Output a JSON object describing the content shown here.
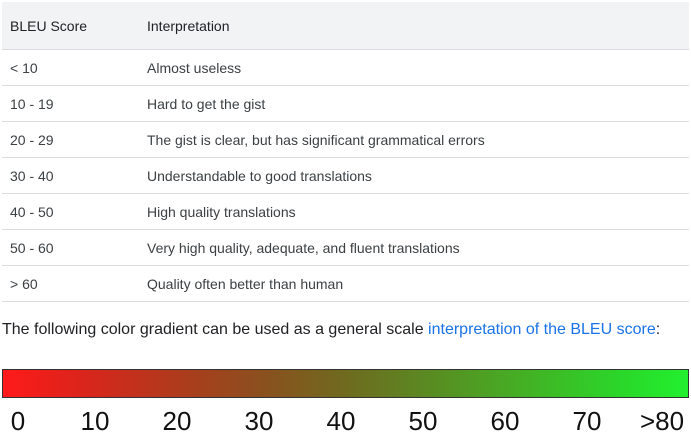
{
  "table": {
    "headers": [
      "BLEU Score",
      "Interpretation"
    ],
    "rows": [
      {
        "score": "< 10",
        "interpretation": "Almost useless"
      },
      {
        "score": "10 - 19",
        "interpretation": "Hard to get the gist"
      },
      {
        "score": "20 - 29",
        "interpretation": "The gist is clear, but has significant grammatical errors"
      },
      {
        "score": "30 - 40",
        "interpretation": "Understandable to good translations"
      },
      {
        "score": "40 - 50",
        "interpretation": "High quality translations"
      },
      {
        "score": "50 - 60",
        "interpretation": "Very high quality, adequate, and fluent translations"
      },
      {
        "score": "> 60",
        "interpretation": "Quality often better than human"
      }
    ]
  },
  "paragraph": {
    "text": "The following color gradient can be used as a general scale ",
    "link": "interpretation of the BLEU score",
    "suffix": ":"
  },
  "gradient": {
    "start_color": "#ff1a1a",
    "end_color": "#22f02e"
  },
  "scale": {
    "ticks": [
      "0",
      "10",
      "20",
      "30",
      "40",
      "50",
      "60",
      "70",
      ">80"
    ]
  }
}
